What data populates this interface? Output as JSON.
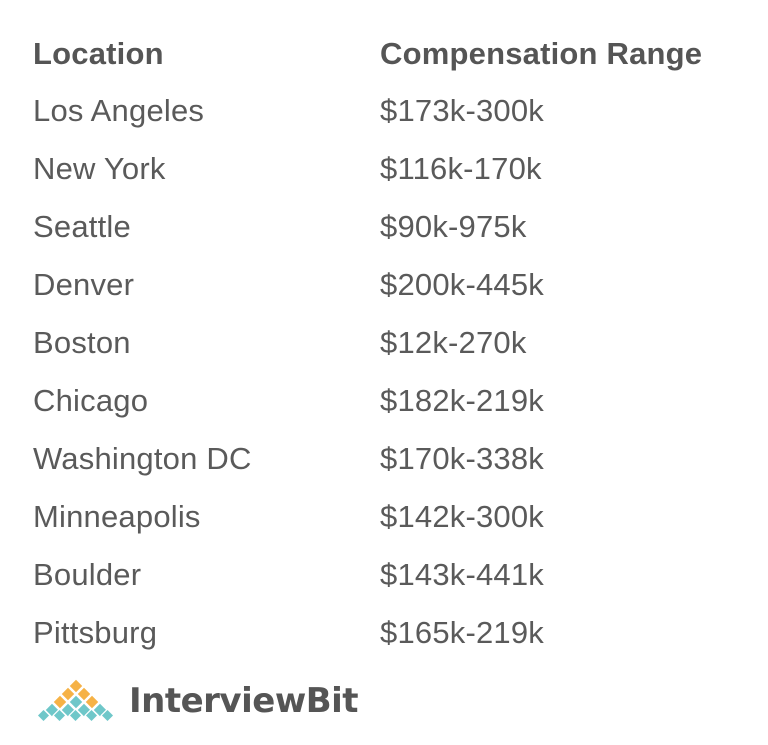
{
  "table": {
    "headers": {
      "location": "Location",
      "compensation": "Compensation Range"
    },
    "rows": [
      {
        "location": "Los Angeles",
        "compensation": "$173k-300k"
      },
      {
        "location": "New York",
        "compensation": "$116k-170k"
      },
      {
        "location": "Seattle",
        "compensation": "$90k-975k"
      },
      {
        "location": "Denver",
        "compensation": "$200k-445k"
      },
      {
        "location": "Boston",
        "compensation": "$12k-270k"
      },
      {
        "location": "Chicago",
        "compensation": "$182k-219k"
      },
      {
        "location": "Washington DC",
        "compensation": "$170k-338k"
      },
      {
        "location": "Minneapolis",
        "compensation": "$142k-300k"
      },
      {
        "location": "Boulder",
        "compensation": "$143k-441k"
      },
      {
        "location": "Pittsburg",
        "compensation": "$165k-219k"
      }
    ]
  },
  "logo": {
    "text": "InterviewBit",
    "icon": "interviewbit-diamond-logo",
    "colors": {
      "orange": "#f6b246",
      "teal": "#6fc7c9",
      "text": "#555555"
    }
  }
}
